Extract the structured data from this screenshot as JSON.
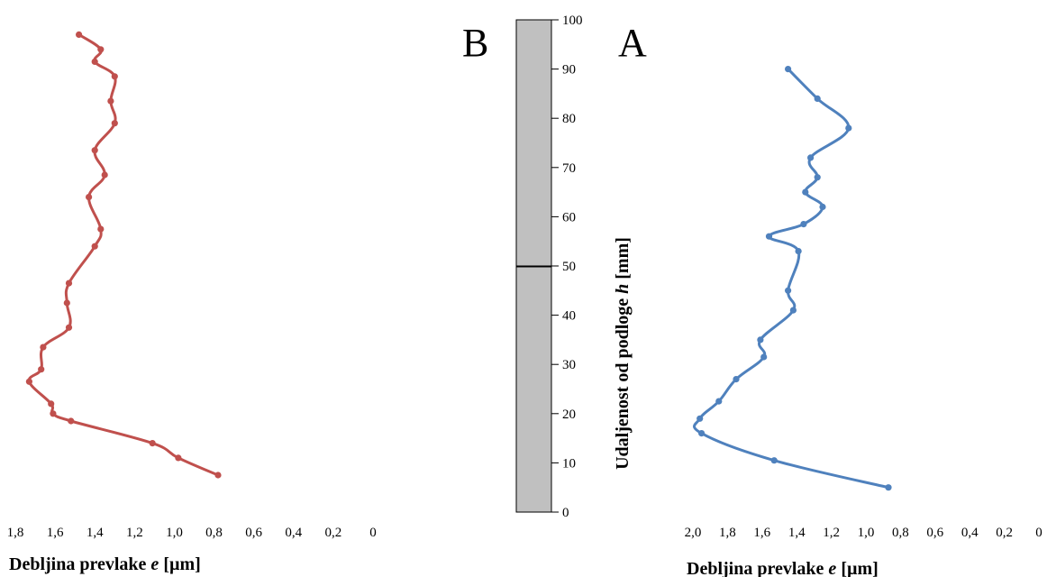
{
  "figure": {
    "panel_b_label": "B",
    "panel_a_label": "A"
  },
  "chart_data": [
    {
      "type": "line",
      "panel": "B",
      "xlabel": "Debljina prevlake e [µm]",
      "xlabel_parts": [
        "Debljina prevlake ",
        "e",
        " [µm]"
      ],
      "x_ticks": [
        "1,8",
        "1,6",
        "1,4",
        "1,2",
        "1,0",
        "0,8",
        "0,6",
        "0,4",
        "0,2",
        "0"
      ],
      "xlim": [
        1.8,
        0
      ],
      "color": "#C0504D",
      "points": [
        [
          0.78,
          7.5
        ],
        [
          0.98,
          11
        ],
        [
          1.11,
          14
        ],
        [
          1.52,
          18.5
        ],
        [
          1.61,
          20
        ],
        [
          1.62,
          22
        ],
        [
          1.73,
          26.5
        ],
        [
          1.67,
          29
        ],
        [
          1.66,
          33.5
        ],
        [
          1.53,
          37.5
        ],
        [
          1.54,
          42.5
        ],
        [
          1.53,
          46.5
        ],
        [
          1.4,
          54
        ],
        [
          1.37,
          57.5
        ],
        [
          1.43,
          64
        ],
        [
          1.35,
          68.5
        ],
        [
          1.4,
          73.5
        ],
        [
          1.3,
          79
        ],
        [
          1.32,
          83.5
        ],
        [
          1.3,
          88.5
        ],
        [
          1.4,
          91.5
        ],
        [
          1.37,
          94
        ],
        [
          1.48,
          97
        ]
      ]
    },
    {
      "type": "line",
      "panel": "A",
      "xlabel": "Debljina prevlake e [µm]",
      "xlabel_parts": [
        "Debljina prevlake ",
        "e",
        " [µm]"
      ],
      "x_ticks": [
        "2,0",
        "1,8",
        "1,6",
        "1,4",
        "1,2",
        "1,0",
        "0,8",
        "0,6",
        "0,4",
        "0,2",
        "0"
      ],
      "xlim": [
        2.0,
        0
      ],
      "color": "#4F81BD",
      "points": [
        [
          0.87,
          5
        ],
        [
          1.53,
          10.5
        ],
        [
          1.95,
          16
        ],
        [
          1.96,
          19
        ],
        [
          1.85,
          22.5
        ],
        [
          1.75,
          27
        ],
        [
          1.59,
          31.5
        ],
        [
          1.61,
          35
        ],
        [
          1.42,
          41
        ],
        [
          1.45,
          45
        ],
        [
          1.39,
          53
        ],
        [
          1.56,
          56
        ],
        [
          1.36,
          58.5
        ],
        [
          1.25,
          62
        ],
        [
          1.35,
          65
        ],
        [
          1.28,
          68
        ],
        [
          1.32,
          72
        ],
        [
          1.1,
          78
        ],
        [
          1.28,
          84
        ],
        [
          1.45,
          90
        ]
      ]
    },
    {
      "type": "bar",
      "panel": "center",
      "ylabel": "Udaljenost od podloge h [mm]",
      "ylabel_parts": [
        "Udaljenost od podloge ",
        "h",
        " [mm]"
      ],
      "y_ticks": [
        "0",
        "10",
        "20",
        "30",
        "40",
        "50",
        "60",
        "70",
        "80",
        "90",
        "100"
      ],
      "ylim": [
        0,
        100
      ],
      "divider_at": 50,
      "fill": "#C0C0C0"
    }
  ]
}
